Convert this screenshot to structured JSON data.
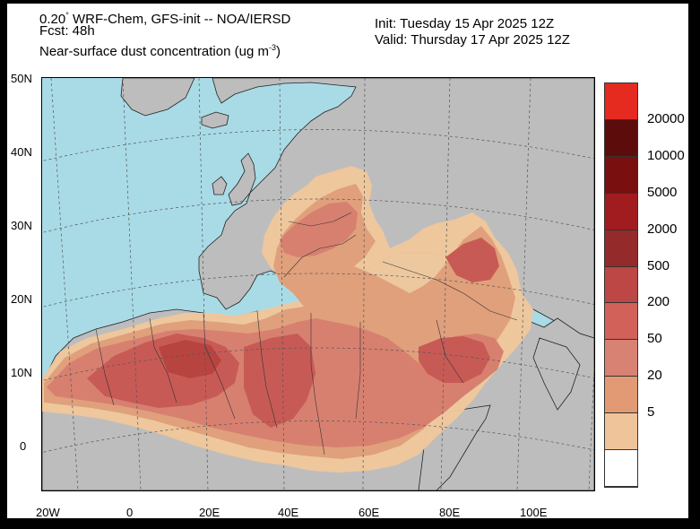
{
  "header": {
    "model_line_prefix": "0.20",
    "model_line_rest": " WRF-Chem, GFS-init -- NOA/IERSD",
    "degree_sign": "°",
    "fcst": "Fcst: 48h",
    "variable_prefix": "Near-surface dust concentration (ug m",
    "variable_exp": "-3",
    "variable_suffix": ")",
    "init": "Init: Tuesday 15 Apr 2025  12Z",
    "valid": "Valid: Thursday 17 Apr 2025  12Z"
  },
  "map": {
    "lat_labels": [
      "50N",
      "40N",
      "30N",
      "20N",
      "10N",
      "0"
    ],
    "lon_labels": [
      "20W",
      "0",
      "20E",
      "40E",
      "60E",
      "80E",
      "100E"
    ],
    "colors": {
      "ocean": "#a9dbe6",
      "land": "#bdbdbd",
      "dust_5": "#f0c79c",
      "dust_20": "#e0a07c",
      "dust_50": "#d78070",
      "dust_200": "#c85a55",
      "dust_500": "#b8443f"
    }
  },
  "colorbar": {
    "labels": [
      "20000",
      "10000",
      "5000",
      "2000",
      "500",
      "200",
      "50",
      "20",
      "5"
    ],
    "colors": [
      "#e52a20",
      "#5d0c0c",
      "#7a0f10",
      "#a01c1e",
      "#952a2a",
      "#bc4745",
      "#d2615a",
      "#d88274",
      "#e19a73",
      "#f0c49a",
      "#ffffff"
    ]
  }
}
